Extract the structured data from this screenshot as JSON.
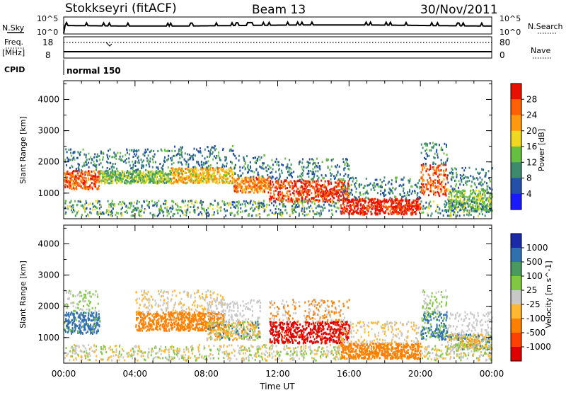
{
  "header": {
    "station": "Stokkseyri (fitACF)",
    "beam": "Beam 13",
    "date": "30/Nov/2011"
  },
  "nsky_panel": {
    "left_label": "N.Sky",
    "right_label": "N.Search",
    "tick_top": "10^5",
    "tick_bottom": "10^0"
  },
  "freq_panel": {
    "left_label_1": "Freq.",
    "left_label_2": "[MHz]",
    "right_label": "Nave",
    "left_ticks": [
      "18",
      "8"
    ],
    "right_ticks": [
      "80",
      "0"
    ]
  },
  "cpid_panel": {
    "label": "CPID",
    "mode": "normal 150"
  },
  "colors": {
    "power_scale": [
      "#1a1aff",
      "#2450a8",
      "#3d8a6e",
      "#66c040",
      "#f0d820",
      "#ff9a10",
      "#ff6000",
      "#e81000"
    ],
    "velocity_scale": [
      "#1a2aa8",
      "#3070b0",
      "#4a9a60",
      "#80c840",
      "#c8c8c8",
      "#ffb830",
      "#ff8000",
      "#ff4000",
      "#e00000"
    ]
  },
  "chart_data": [
    {
      "type": "heatmap",
      "title": "",
      "xlabel": "Time UT",
      "ylabel": "Slant Range [km]",
      "x_ticks": [
        "00:00",
        "04:00",
        "08:00",
        "12:00",
        "16:00",
        "20:00",
        "00:00"
      ],
      "y_ticks": [
        "1000",
        "2000",
        "3000",
        "4000"
      ],
      "ylim": [
        180,
        4600
      ],
      "colorbar": {
        "label": "Power [dB]",
        "ticks": [
          "4",
          "8",
          "12",
          "16",
          "20",
          "24",
          "28"
        ],
        "range": [
          0,
          32
        ]
      },
      "features": [
        {
          "t_start": 0.0,
          "t_end": 2.0,
          "range_min": 1100,
          "range_max": 1700,
          "value": 26
        },
        {
          "t_start": 2.0,
          "t_end": 6.0,
          "range_min": 1300,
          "range_max": 1700,
          "value": 14
        },
        {
          "t_start": 6.0,
          "t_end": 9.5,
          "range_min": 1300,
          "range_max": 1800,
          "value": 20
        },
        {
          "t_start": 9.5,
          "t_end": 11.5,
          "range_min": 1000,
          "range_max": 1500,
          "value": 24
        },
        {
          "t_start": 11.5,
          "t_end": 16.0,
          "range_min": 700,
          "range_max": 1400,
          "value": 28
        },
        {
          "t_start": 15.5,
          "t_end": 20.0,
          "range_min": 300,
          "range_max": 800,
          "value": 30
        },
        {
          "t_start": 20.0,
          "t_end": 21.5,
          "range_min": 900,
          "range_max": 1900,
          "value": 26
        },
        {
          "t_start": 21.5,
          "t_end": 24.0,
          "range_min": 400,
          "range_max": 1100,
          "value": 14
        }
      ]
    },
    {
      "type": "heatmap",
      "title": "",
      "xlabel": "Time UT",
      "ylabel": "Slant Range [km]",
      "x_ticks": [
        "00:00",
        "04:00",
        "08:00",
        "12:00",
        "16:00",
        "20:00",
        "00:00"
      ],
      "y_ticks": [
        "1000",
        "2000",
        "3000",
        "4000"
      ],
      "ylim": [
        180,
        4600
      ],
      "colorbar": {
        "label": "Velocity [m s^-1]",
        "ticks": [
          "1000",
          "500",
          "100",
          "25",
          "-25",
          "-100",
          "-500",
          "-1000"
        ],
        "range": [
          -1000,
          1000
        ]
      },
      "features": [
        {
          "t_start": 0.0,
          "t_end": 2.0,
          "range_min": 1100,
          "range_max": 1800,
          "value": 200
        },
        {
          "t_start": 4.0,
          "t_end": 9.0,
          "range_min": 1200,
          "range_max": 1800,
          "value": -300
        },
        {
          "t_start": 8.0,
          "t_end": 11.0,
          "range_min": 900,
          "range_max": 1500,
          "value": 0
        },
        {
          "t_start": 11.5,
          "t_end": 16.0,
          "range_min": 800,
          "range_max": 1500,
          "value": -900
        },
        {
          "t_start": 15.5,
          "t_end": 20.0,
          "range_min": 300,
          "range_max": 800,
          "value": -250
        },
        {
          "t_start": 20.0,
          "t_end": 21.5,
          "range_min": 900,
          "range_max": 1800,
          "value": 150
        },
        {
          "t_start": 21.5,
          "t_end": 24.0,
          "range_min": 600,
          "range_max": 1100,
          "value": 0
        }
      ]
    }
  ]
}
